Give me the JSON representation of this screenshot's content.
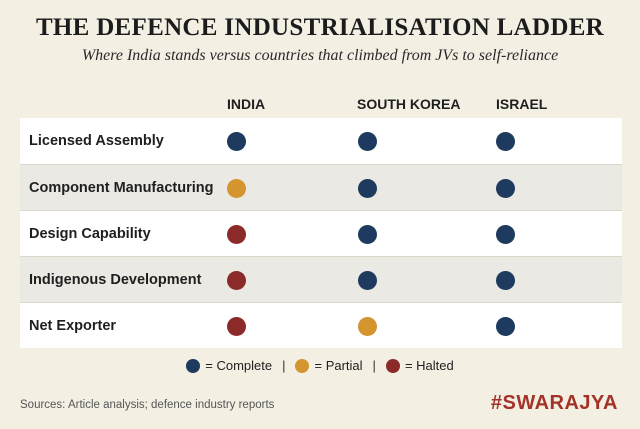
{
  "title": "THE DEFENCE INDUSTRIALISATION LADDER",
  "subtitle": "Where India stands versus countries that climbed from JVs to self-reliance",
  "chart_data": {
    "type": "table",
    "title": "THE DEFENCE INDUSTRIALISATION LADDER",
    "columns": [
      "INDIA",
      "SOUTH KOREA",
      "ISRAEL"
    ],
    "rows": [
      {
        "label": "Licensed Assembly",
        "values": [
          "Complete",
          "Complete",
          "Complete"
        ]
      },
      {
        "label": "Component Manufacturing",
        "values": [
          "Partial",
          "Complete",
          "Complete"
        ]
      },
      {
        "label": "Design Capability",
        "values": [
          "Halted",
          "Complete",
          "Complete"
        ]
      },
      {
        "label": "Indigenous Development",
        "values": [
          "Halted",
          "Complete",
          "Complete"
        ]
      },
      {
        "label": "Net Exporter",
        "values": [
          "Halted",
          "Partial",
          "Complete"
        ]
      }
    ],
    "status_colors": {
      "Complete": "#1e3a5f",
      "Partial": "#d4942e",
      "Halted": "#8c2a2a"
    }
  },
  "legend": [
    {
      "status": "Complete",
      "label": "= Complete"
    },
    {
      "status": "Partial",
      "label": "= Partial"
    },
    {
      "status": "Halted",
      "label": "= Halted"
    }
  ],
  "legend_separator": "|",
  "sources": "Sources: Article analysis; defence industry reports",
  "brand": "#SWARAJYA"
}
